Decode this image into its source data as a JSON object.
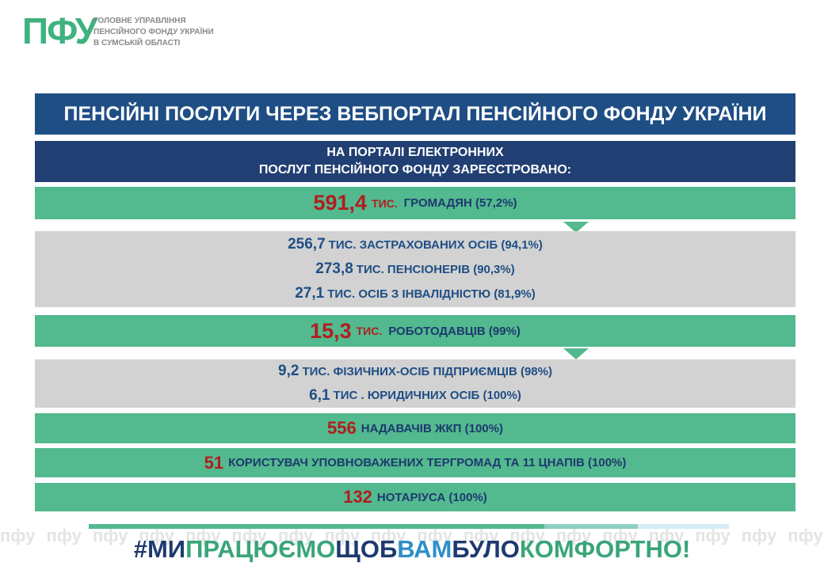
{
  "logo": {
    "mark": "ПФУ",
    "lines": [
      "ГОЛОВНЕ УПРАВЛІННЯ",
      "ПЕНСІЙНОГО ФОНДУ УКРАЇНИ",
      "В СУМСЬКІЙ ОБЛАСТІ"
    ]
  },
  "title": "ПЕНСІЙНІ ПОСЛУГИ ЧЕРЕЗ ВЕБПОРТАЛ ПЕНСІЙНОГО ФОНДУ УКРАЇНИ",
  "subtitle": [
    "НА ПОРТАЛІ ЕЛЕКТРОННИХ",
    "ПОСЛУГ ПЕНСІЙНОГО ФОНДУ ЗАРЕЄСТРОВАНО:"
  ],
  "rows": [
    {
      "number": "591,4",
      "unit": "ТИС.",
      "text": "ГРОМАДЯН (57,2%)"
    },
    {
      "lines": [
        {
          "number": "256,7",
          "text": "ТИС. ЗАСТРАХОВАНИХ ОСІБ (94,1%)"
        },
        {
          "number": "273,8",
          "text": "ТИС. ПЕНСІОНЕРІВ (90,3%)"
        },
        {
          "number": "27,1",
          "text": "ТИС. ОСІБ З ІНВАЛІДНІСТЮ (81,9%)"
        }
      ]
    },
    {
      "number": "15,3",
      "unit": "ТИС.",
      "text": "РОБОТОДАВЦІВ (99%)"
    },
    {
      "lines": [
        {
          "number": "9,2",
          "text": "ТИС. ФІЗИЧНИХ-ОСІБ ПІДПРИЄМЦІВ (98%)"
        },
        {
          "number": "6,1",
          "text": "ТИС . ЮРИДИЧНИХ ОСІБ (100%)"
        }
      ]
    },
    {
      "number": "556",
      "text": "НАДАВАЧІВ ЖКП (100%)"
    },
    {
      "number": "51",
      "text": "КОРИСТУВАЧ УПОВНОВАЖЕНИХ ТЕРГРОМАД ТА 11 ЦНАПІВ (100%)"
    },
    {
      "number": "132",
      "text": "НОТАРІУСА (100%)"
    }
  ],
  "watermark": "пфу",
  "hashtag": [
    {
      "text": "#МИ",
      "color": "#1d3a6e"
    },
    {
      "text": "ПРАЦЮЄМО",
      "color": "#3aa57a"
    },
    {
      "text": "ЩОБ",
      "color": "#1d3a6e"
    },
    {
      "text": "ВАМ",
      "color": "#2e8fc9"
    },
    {
      "text": "БУЛО",
      "color": "#1d3a6e"
    },
    {
      "text": "КОМФОРТНО!",
      "color": "#3aa57a"
    }
  ]
}
